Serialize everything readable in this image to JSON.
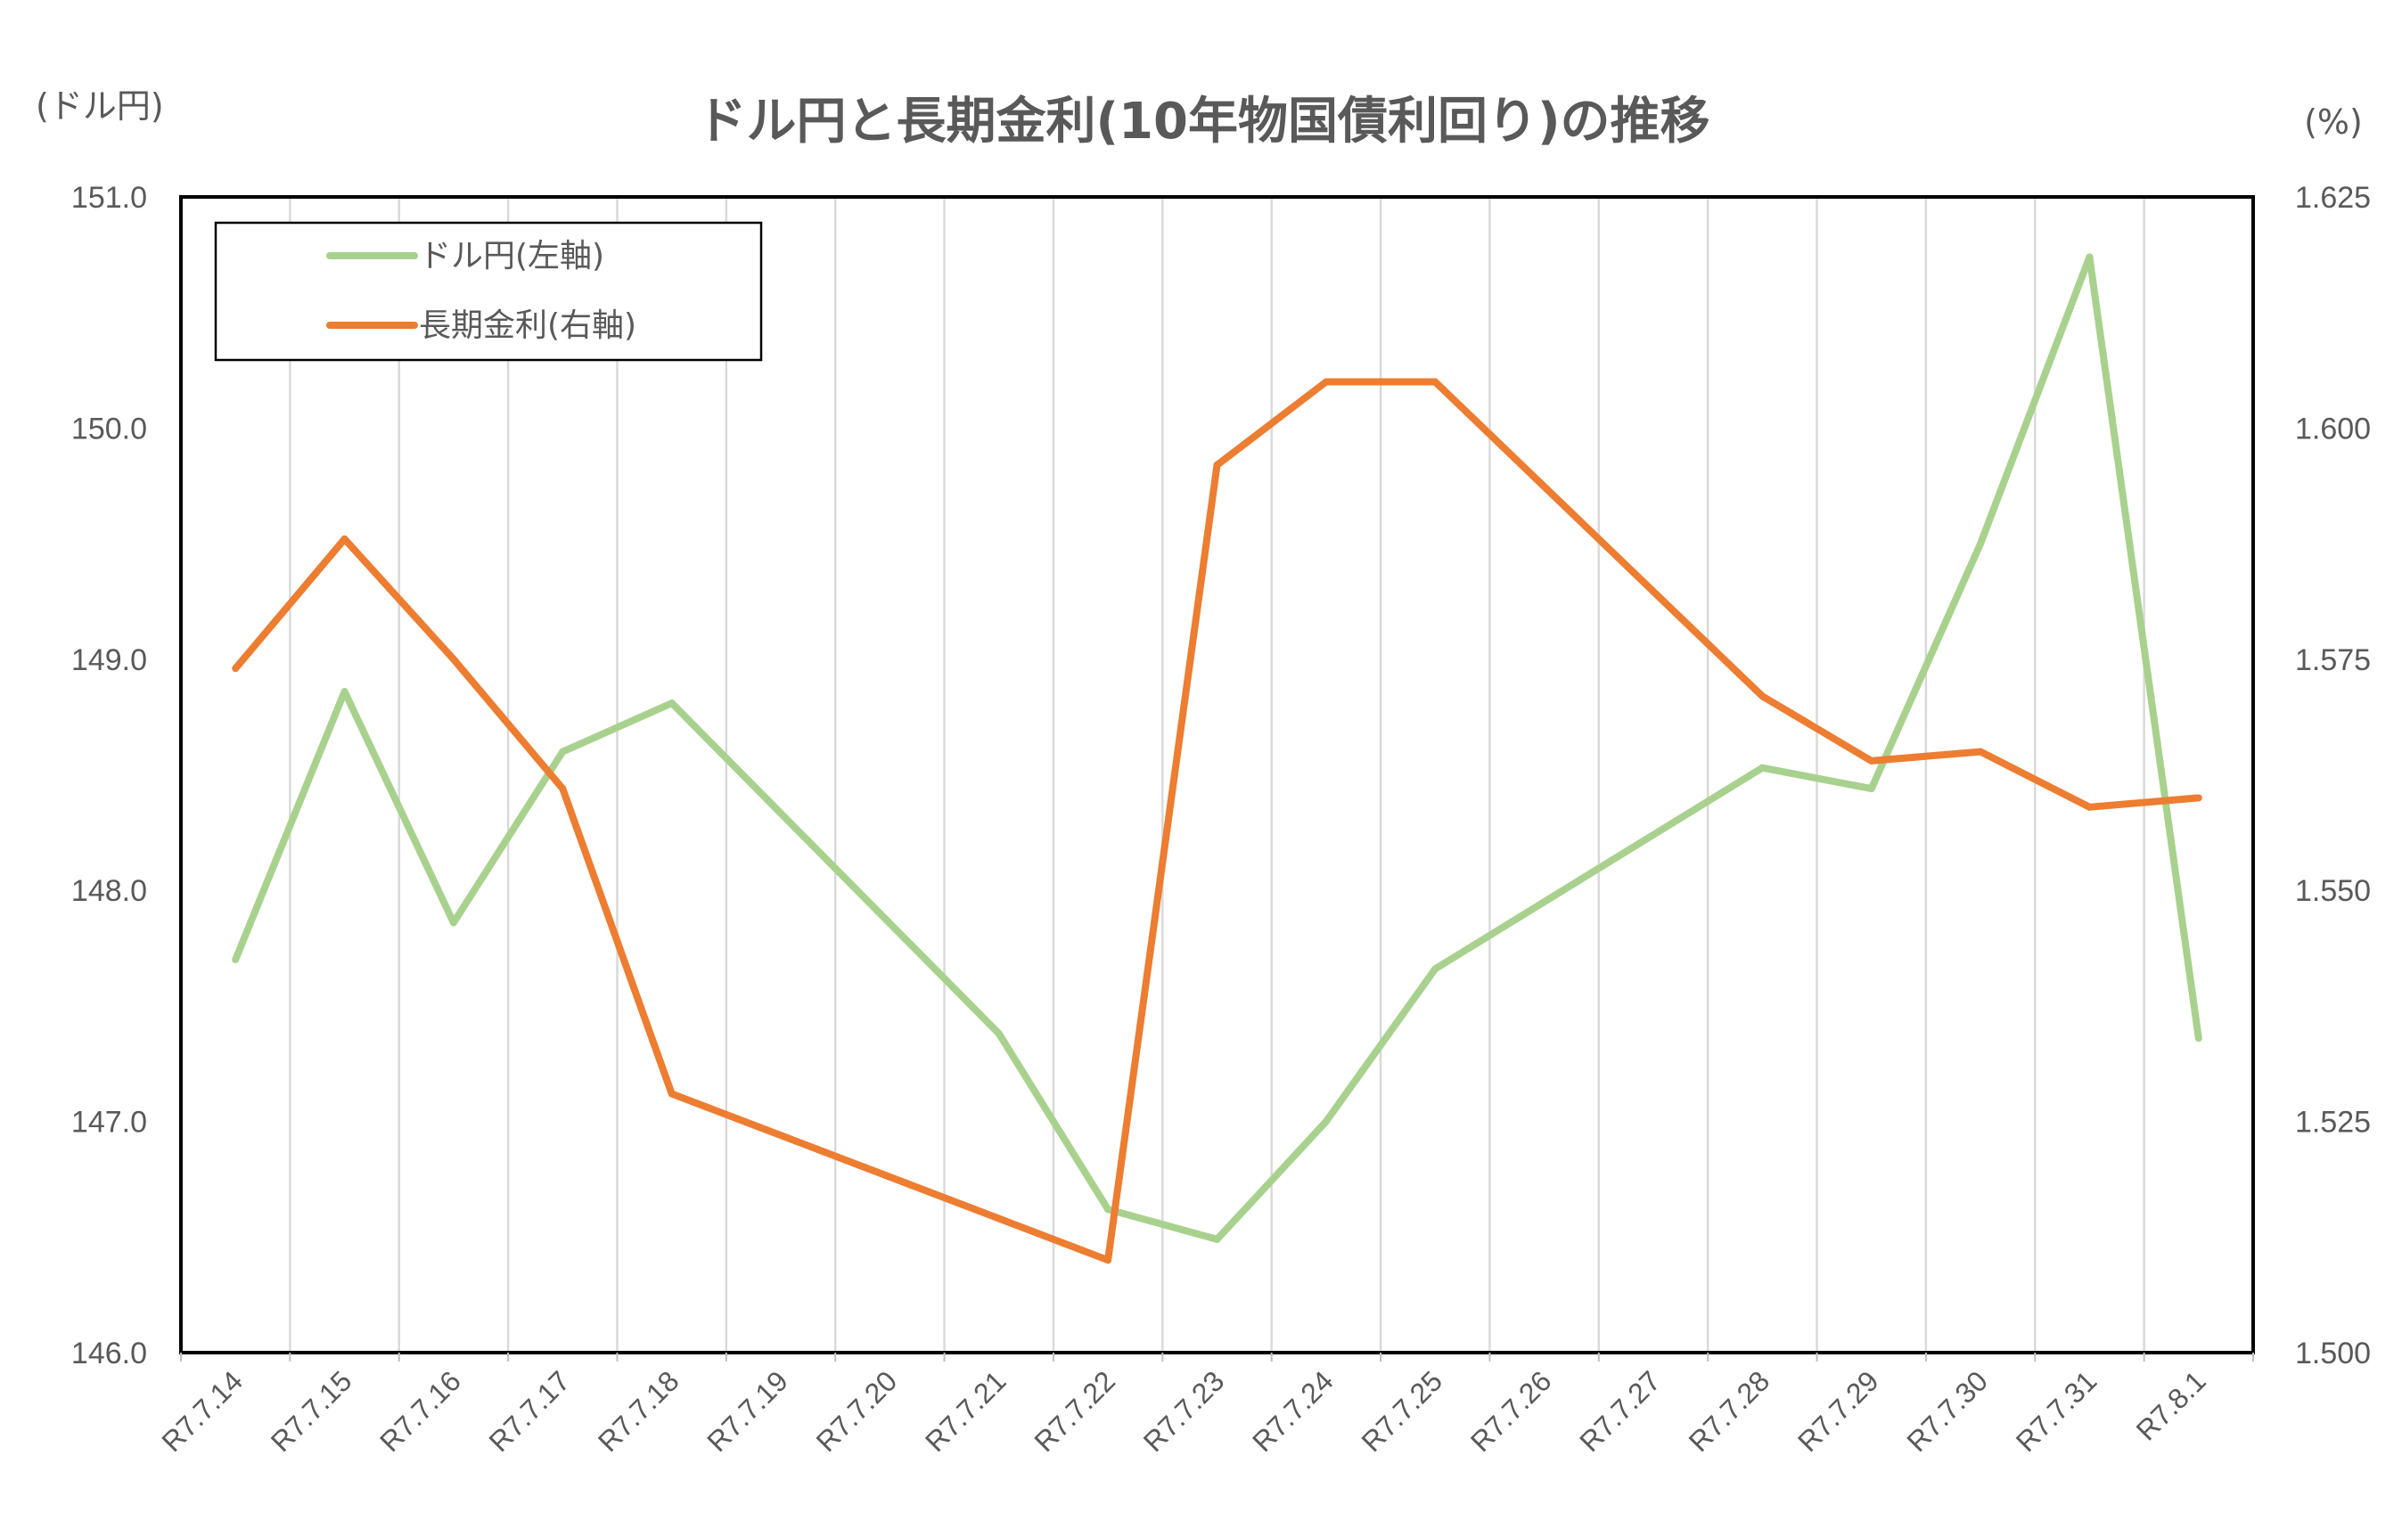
{
  "chart_data": {
    "type": "line",
    "title": "ドル円と長期金利(10年物国債利回り)の推移",
    "y_left_label": "(ドル円)",
    "y_right_label": "(%)",
    "y_left": {
      "min": 146.0,
      "max": 151.0,
      "ticks": [
        "146.0",
        "147.0",
        "148.0",
        "149.0",
        "150.0",
        "151.0"
      ]
    },
    "y_right": {
      "min": 1.5,
      "max": 1.625,
      "ticks": [
        "1.500",
        "1.525",
        "1.550",
        "1.575",
        "1.600",
        "1.625"
      ]
    },
    "categories": [
      "R7.7.14",
      "R7.7.15",
      "R7.7.16",
      "R7.7.17",
      "R7.7.18",
      "R7.7.19",
      "R7.7.20",
      "R7.7.21",
      "R7.7.22",
      "R7.7.23",
      "R7.7.24",
      "R7.7.25",
      "R7.7.26",
      "R7.7.27",
      "R7.7.28",
      "R7.7.29",
      "R7.7.30",
      "R7.7.31",
      "R7.8.1"
    ],
    "grid": "vertical",
    "legend_position": "top-left",
    "series": [
      {
        "name": "ドル円(左軸)",
        "axis": "left",
        "color": "#a9d18e",
        "points": [
          {
            "x": "R7.7.14",
            "y": 147.7
          },
          {
            "x": "R7.7.15",
            "y": 148.86
          },
          {
            "x": "R7.7.16",
            "y": 147.86
          },
          {
            "x": "R7.7.17",
            "y": 148.6
          },
          {
            "x": "R7.7.18",
            "y": 148.81
          },
          {
            "x": "R7.7.21",
            "y": 147.38
          },
          {
            "x": "R7.7.22",
            "y": 146.62
          },
          {
            "x": "R7.7.23",
            "y": 146.49
          },
          {
            "x": "R7.7.24",
            "y": 147.0
          },
          {
            "x": "R7.7.25",
            "y": 147.66
          },
          {
            "x": "R7.7.28",
            "y": 148.53
          },
          {
            "x": "R7.7.29",
            "y": 148.44
          },
          {
            "x": "R7.7.30",
            "y": 149.5
          },
          {
            "x": "R7.7.31",
            "y": 150.74
          },
          {
            "x": "R7.8.1",
            "y": 147.36
          }
        ]
      },
      {
        "name": "長期金利(右軸)",
        "axis": "right",
        "color": "#ed7d31",
        "points": [
          {
            "x": "R7.7.14",
            "y": 1.574
          },
          {
            "x": "R7.7.15",
            "y": 1.588
          },
          {
            "x": "R7.7.16",
            "y": 1.575
          },
          {
            "x": "R7.7.17",
            "y": 1.561
          },
          {
            "x": "R7.7.18",
            "y": 1.528
          },
          {
            "x": "R7.7.22",
            "y": 1.51
          },
          {
            "x": "R7.7.23",
            "y": 1.596
          },
          {
            "x": "R7.7.24",
            "y": 1.605
          },
          {
            "x": "R7.7.25",
            "y": 1.605
          },
          {
            "x": "R7.7.28",
            "y": 1.571
          },
          {
            "x": "R7.7.29",
            "y": 1.564
          },
          {
            "x": "R7.7.30",
            "y": 1.565
          },
          {
            "x": "R7.7.31",
            "y": 1.559
          },
          {
            "x": "R7.8.1",
            "y": 1.56
          }
        ]
      }
    ]
  }
}
